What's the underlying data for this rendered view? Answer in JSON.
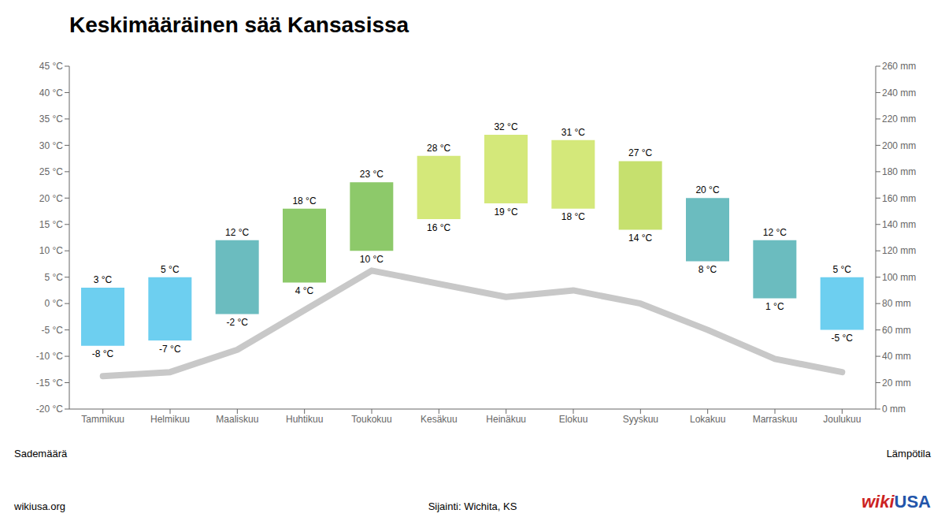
{
  "chart_data": {
    "type": "bar",
    "title": "Keskimääräinen sää Kansasissa",
    "categories": [
      "Tammikuu",
      "Helmikuu",
      "Maaliskuu",
      "Huhtikuu",
      "Toukokuu",
      "Kesäkuu",
      "Heinäkuu",
      "Elokuu",
      "Syyskuu",
      "Lokakuu",
      "Marraskuu",
      "Joulukuu"
    ],
    "series": [
      {
        "type": "bar",
        "colors": [
          "#6dcff0",
          "#6dcff0",
          "#6bbcbf",
          "#8dc96a",
          "#8dc96a",
          "#d4e87a",
          "#d4e87a",
          "#d4e87a",
          "#c6e06e",
          "#6bbcbf",
          "#6bbcbf",
          "#6dcff0"
        ],
        "values": [
          3,
          5,
          12,
          18,
          23,
          28,
          32,
          31,
          27,
          20,
          12,
          5
        ],
        "value_labels": [
          "3 °C",
          "5 °C",
          "12 °C",
          "18 °C",
          "23 °C",
          "28 °C",
          "32 °C",
          "31 °C",
          "27 °C",
          "20 °C",
          "12 °C",
          "5 °C"
        ],
        "base": [
          -8,
          -7,
          -2,
          4,
          10,
          16,
          19,
          18,
          14,
          8,
          1,
          -5
        ],
        "base_labels": [
          "-8 °C",
          "-7 °C",
          "-2 °C",
          "4 °C",
          "10 °C",
          "16 °C",
          "19 °C",
          "18 °C",
          "14 °C",
          "8 °C",
          "1 °C",
          "-5 °C"
        ]
      },
      {
        "type": "line",
        "color": "#c8c8c8",
        "axis": "y2",
        "values": [
          25,
          28,
          45,
          75,
          105,
          95,
          85,
          90,
          80,
          60,
          38,
          28
        ]
      }
    ],
    "ylim": [
      -20,
      45
    ],
    "yticks": [
      {
        "value": -20,
        "label": "-20 °C"
      },
      {
        "value": -15,
        "label": "-15 °C"
      },
      {
        "value": -10,
        "label": "-10 °C"
      },
      {
        "value": -5,
        "label": "-5 °C"
      },
      {
        "value": 0,
        "label": "0 °C"
      },
      {
        "value": 5,
        "label": "5 °C"
      },
      {
        "value": 10,
        "label": "10 °C"
      },
      {
        "value": 15,
        "label": "15 °C"
      },
      {
        "value": 20,
        "label": "20 °C"
      },
      {
        "value": 25,
        "label": "25 °C"
      },
      {
        "value": 30,
        "label": "30 °C"
      },
      {
        "value": 35,
        "label": "35 °C"
      },
      {
        "value": 40,
        "label": "40 °C"
      },
      {
        "value": 45,
        "label": "45 °C"
      }
    ],
    "y2lim": [
      0,
      260
    ],
    "y2ticks": [
      {
        "value": 0,
        "label": "0 mm"
      },
      {
        "value": 20,
        "label": "20 mm"
      },
      {
        "value": 40,
        "label": "40 mm"
      },
      {
        "value": 60,
        "label": "60 mm"
      },
      {
        "value": 80,
        "label": "80 mm"
      },
      {
        "value": 100,
        "label": "100 mm"
      },
      {
        "value": 120,
        "label": "120 mm"
      },
      {
        "value": 140,
        "label": "140 mm"
      },
      {
        "value": 160,
        "label": "160 mm"
      },
      {
        "value": 180,
        "label": "180 mm"
      },
      {
        "value": 200,
        "label": "200 mm"
      },
      {
        "value": 220,
        "label": "220 mm"
      },
      {
        "value": 240,
        "label": "240 mm"
      },
      {
        "value": 260,
        "label": "260 mm"
      }
    ],
    "data_labels": true,
    "grid": false,
    "annotations": [
      {
        "text": "Sademäärä"
      },
      {
        "text": "Lämpötila"
      },
      {
        "text": "wikiusa.org"
      },
      {
        "text": "Sijainti: Wichita, KS"
      },
      {
        "text": "wiki",
        "color": "#cc2222"
      },
      {
        "text": "USA",
        "color": "#2255aa"
      }
    ]
  }
}
